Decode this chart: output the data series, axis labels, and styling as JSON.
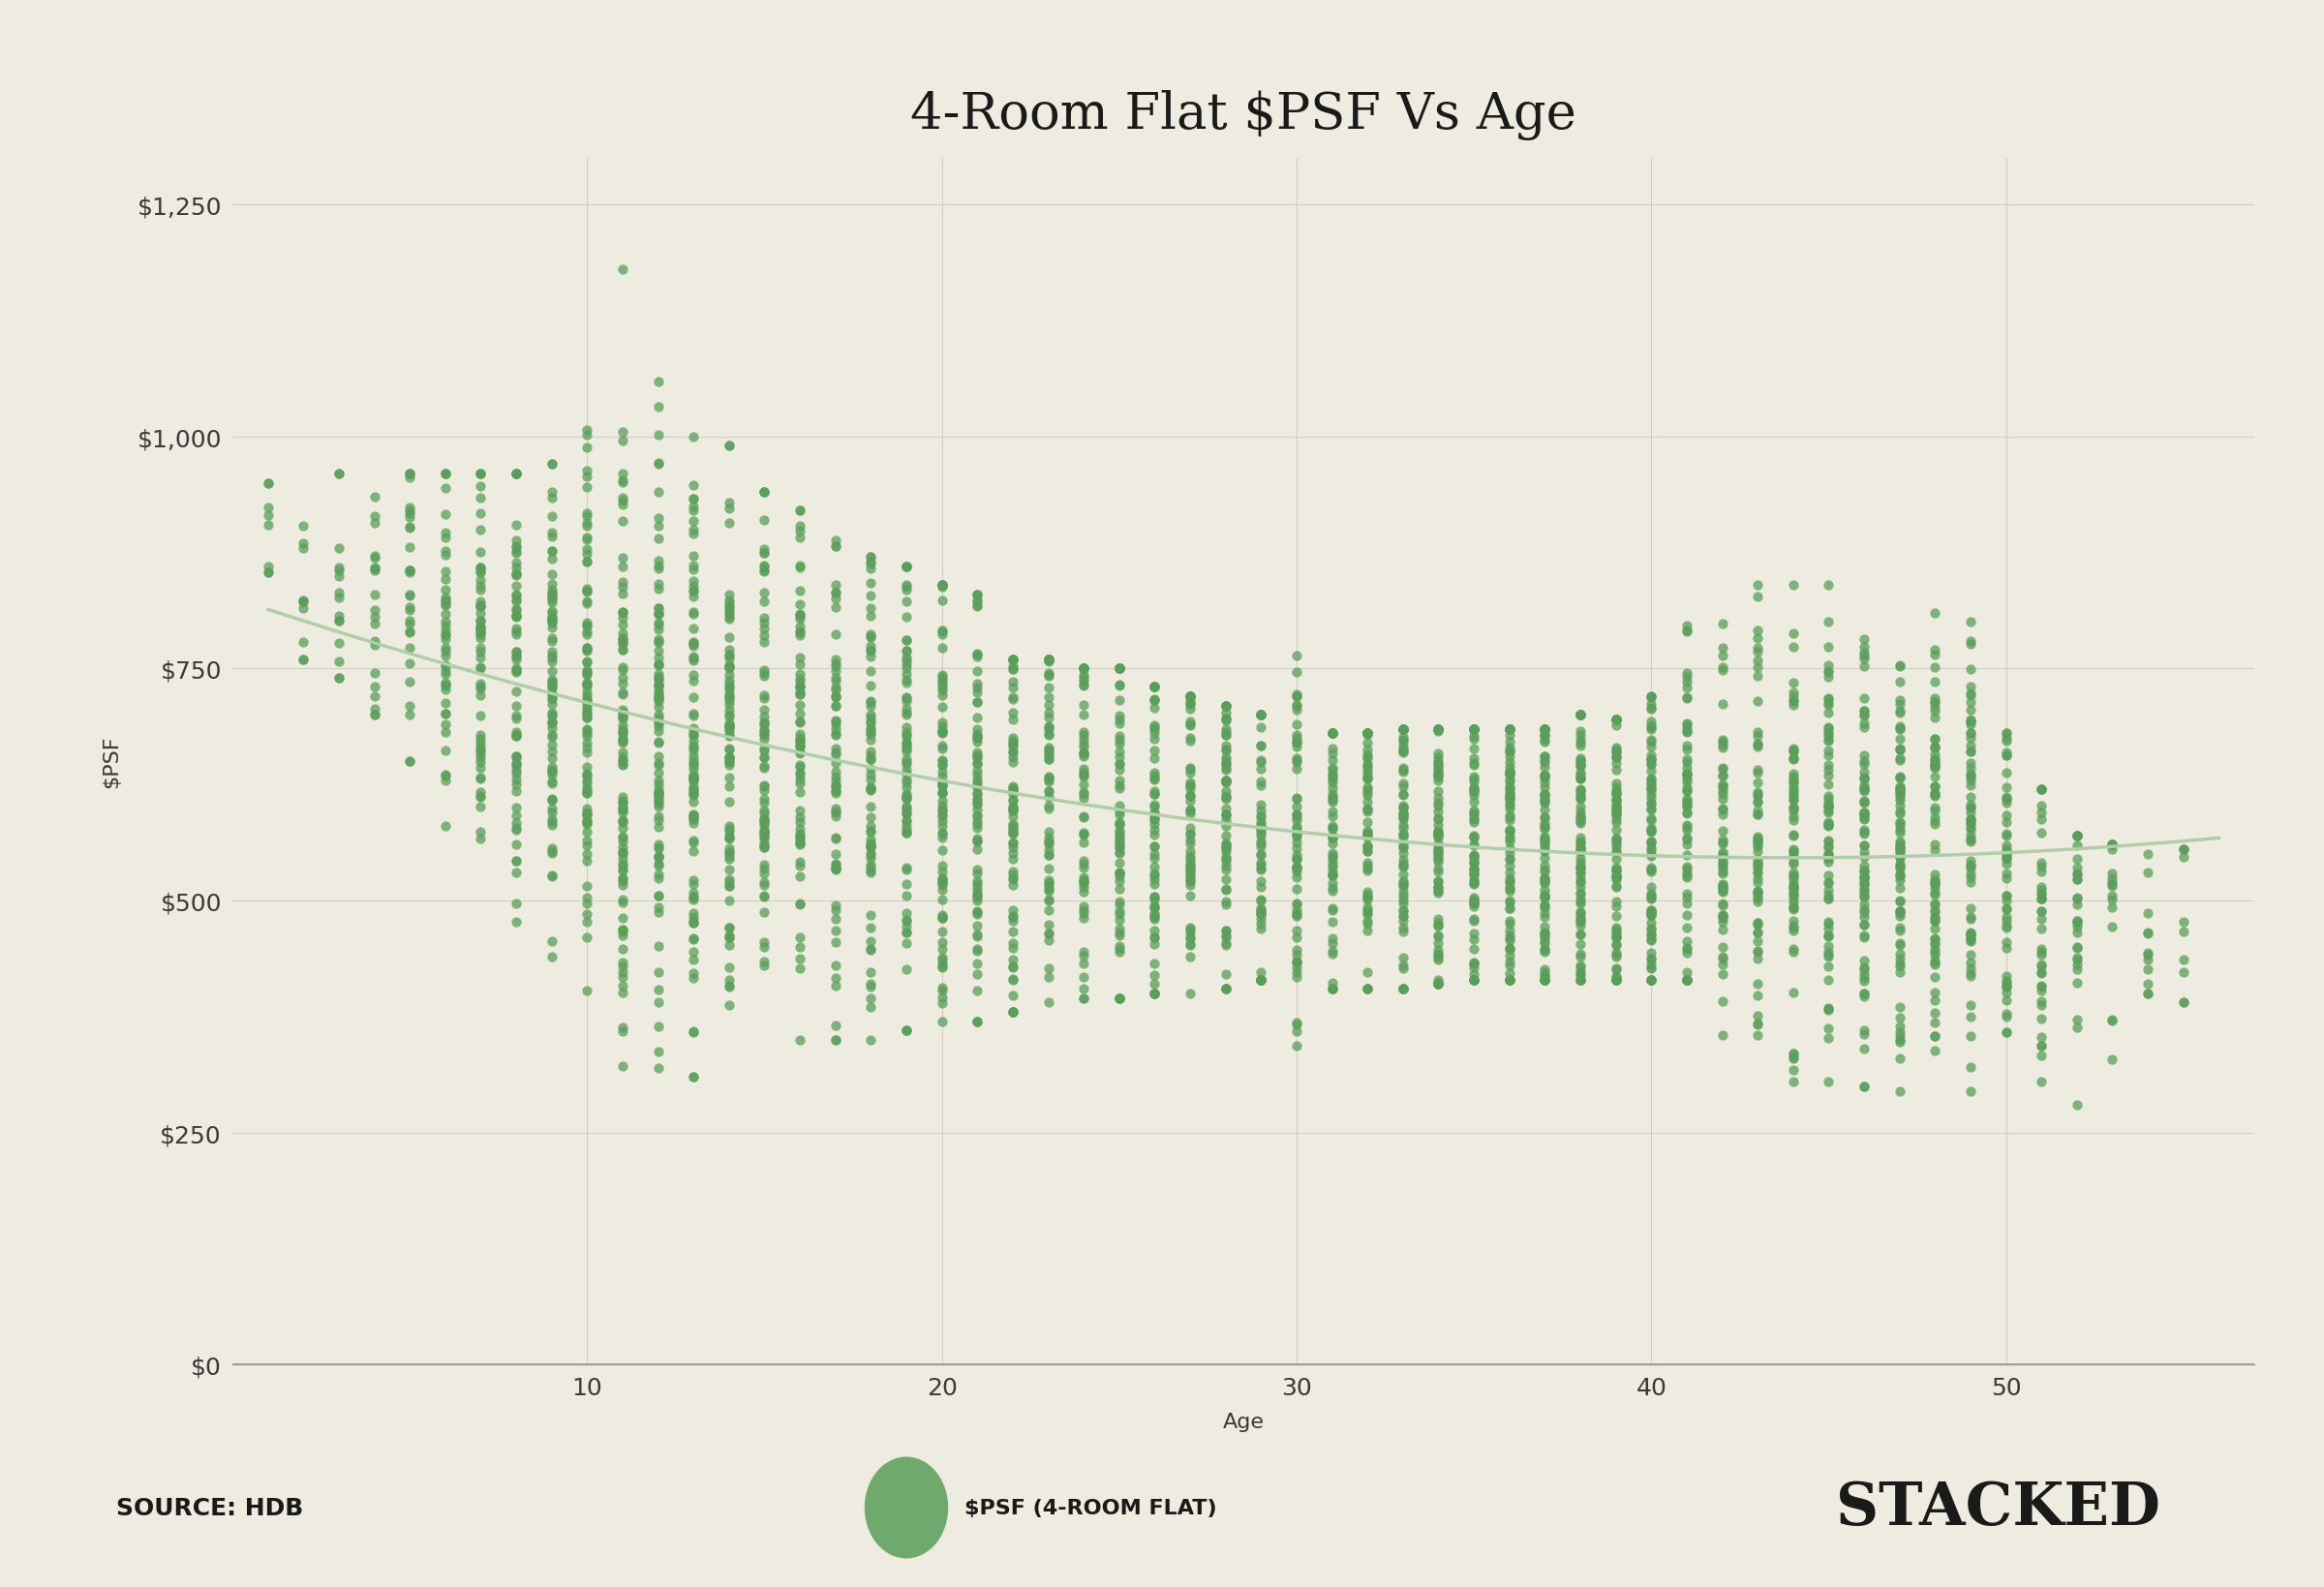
{
  "title": "4-Room Flat $PSF Vs Age",
  "xlabel": "Age",
  "ylabel": "$PSF",
  "background_color": "#eeebe0",
  "dot_color": "#5a9e5a",
  "dot_alpha": 0.75,
  "dot_size": 55,
  "trend_color": "#b0cfa8",
  "trend_linewidth": 2.5,
  "source_text": "SOURCE: HDB",
  "legend_text": "$PSF (4-ROOM FLAT)",
  "brand_text": "STACKED",
  "ylim": [
    0,
    1300
  ],
  "xlim": [
    0,
    57
  ],
  "yticks": [
    0,
    250,
    500,
    750,
    1000,
    1250
  ],
  "ytick_labels": [
    "$0",
    "$250",
    "$500",
    "$750",
    "$1,000",
    "$1,250"
  ],
  "xticks": [
    10,
    20,
    30,
    40,
    50
  ],
  "seed": 42,
  "title_fontsize": 38,
  "tick_fontsize": 18,
  "label_fontsize": 16
}
